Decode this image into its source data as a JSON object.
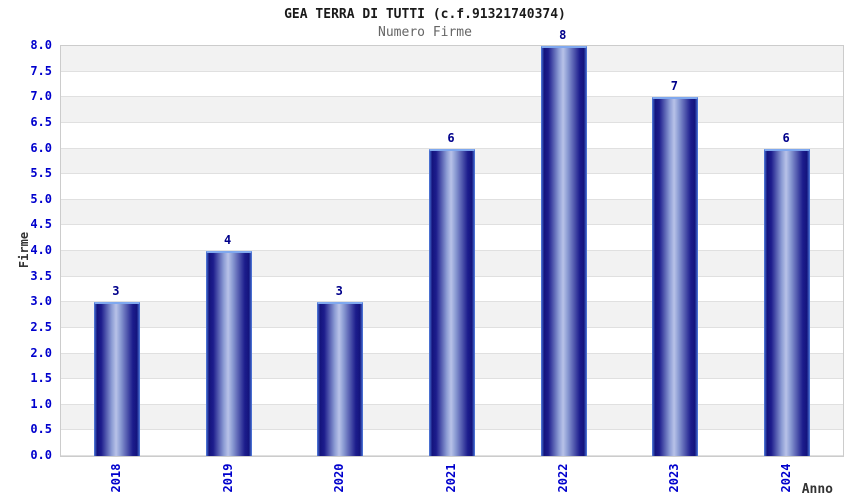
{
  "header": {
    "title": "GEA TERRA DI TUTTI (c.f.91321740374)",
    "subtitle": "Numero Firme"
  },
  "chart_data": {
    "type": "bar",
    "categories": [
      "2018",
      "2019",
      "2020",
      "2021",
      "2022",
      "2023",
      "2024"
    ],
    "values": [
      3,
      4,
      3,
      6,
      8,
      7,
      6
    ],
    "title": "GEA TERRA DI TUTTI (c.f.91321740374)",
    "subtitle": "Numero Firme",
    "xlabel": "Anno",
    "ylabel": "Firme",
    "ylim": [
      0,
      8
    ],
    "ytick_step": 0.5,
    "grid": true,
    "legend_position": "none",
    "bands_alternating": true,
    "bar_labels": [
      "3",
      "4",
      "3",
      "6",
      "8",
      "7",
      "6"
    ],
    "colors": {
      "tick_label": "#0000cd",
      "value_label": "#00008b",
      "title": "#1a1a1a",
      "subtitle": "#666666",
      "axis_label": "#333333",
      "band_gray": "#f2f2f2",
      "band_white": "#ffffff",
      "gridline": "#e0e0e0",
      "plot_border": "#cccccc",
      "bar_dark": "#14147d",
      "bar_light": "#b8c2e8",
      "bar_top_highlight": "#7fa8ef"
    }
  }
}
